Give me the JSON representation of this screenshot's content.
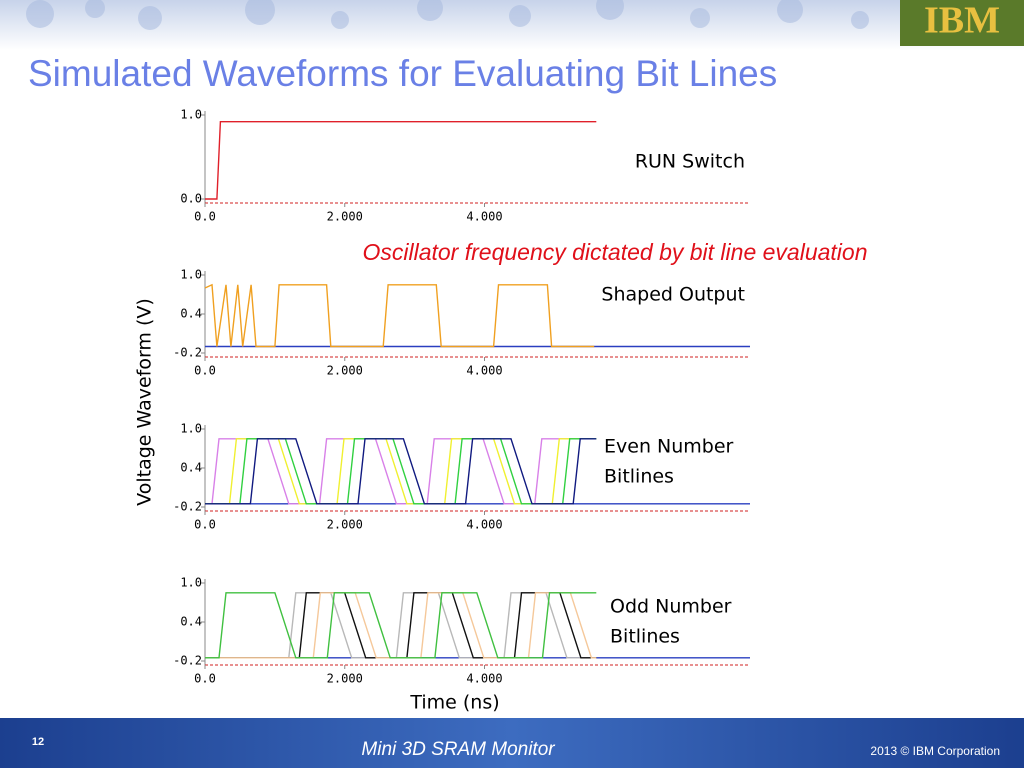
{
  "header": {
    "title": "Simulated Waveforms for Evaluating Bit Lines",
    "logo": "IBM"
  },
  "annotation": "Oscillator frequency dictated by bit line evaluation",
  "y_label": "Voltage Waveform (V)",
  "x_label": "Time (ns)",
  "chart_data": [
    {
      "type": "line",
      "annotation": [
        "RUN Switch"
      ],
      "xlim": [
        0,
        7.8
      ],
      "xticks": [
        {
          "value": 0,
          "label": "0.0"
        },
        {
          "value": 2,
          "label": "2.000"
        },
        {
          "value": 4,
          "label": "4.000"
        }
      ],
      "ylim": [
        0,
        1
      ],
      "yticks": [
        {
          "value": 0,
          "label": "0.0"
        },
        {
          "value": 1,
          "label": "1.0"
        }
      ],
      "series": [
        {
          "color": "#e0202a",
          "x": [
            0,
            0.17,
            0.22,
            5.6
          ],
          "values": [
            0,
            0,
            0.92,
            0.92
          ]
        }
      ]
    },
    {
      "type": "line",
      "annotation": [
        "Shaped Output"
      ],
      "xlim": [
        0,
        7.8
      ],
      "xticks": [
        {
          "value": 0,
          "label": "0.0"
        },
        {
          "value": 2,
          "label": "2.000"
        },
        {
          "value": 4,
          "label": "4.000"
        }
      ],
      "ylim": [
        -0.2,
        1
      ],
      "yticks": [
        -0.2,
        0.4,
        {
          "value": 1,
          "label": "1.0"
        }
      ],
      "series": [
        {
          "color": "#2a3fc0",
          "x": [
            0,
            7.8
          ],
          "values": [
            -0.1,
            -0.1
          ]
        },
        {
          "color": "#f0a020",
          "x": [
            0,
            0.1,
            0.17,
            0.3,
            0.37,
            0.47,
            0.54,
            0.66,
            0.73,
            1.0,
            1.06,
            1.74,
            1.8,
            2.55,
            2.62,
            3.31,
            3.38,
            4.13,
            4.2,
            4.9,
            4.96,
            5.57
          ],
          "values": [
            0.8,
            0.85,
            -0.1,
            0.85,
            -0.1,
            0.85,
            -0.1,
            0.85,
            -0.1,
            -0.1,
            0.85,
            0.85,
            -0.1,
            -0.1,
            0.85,
            0.85,
            -0.1,
            -0.1,
            0.85,
            0.85,
            -0.1,
            -0.1
          ]
        }
      ]
    },
    {
      "type": "line",
      "annotation": [
        "Even Number",
        "Bitlines"
      ],
      "xlim": [
        0,
        7.8
      ],
      "xticks": [
        {
          "value": 0,
          "label": "0.0"
        },
        {
          "value": 2,
          "label": "2.000"
        },
        {
          "value": 4,
          "label": "4.000"
        }
      ],
      "ylim": [
        -0.2,
        1
      ],
      "yticks": [
        -0.2,
        0.4,
        {
          "value": 1,
          "label": "1.0"
        }
      ],
      "series": [
        {
          "color": "#2a3fc0",
          "x": [
            0,
            7.8
          ],
          "values": [
            -0.15,
            -0.15
          ]
        },
        {
          "color": "#d880e8",
          "x": [
            0,
            0.1,
            0.2,
            0.9,
            1.2,
            1.64,
            1.74,
            2.44,
            2.74,
            3.18,
            3.28,
            3.98,
            4.28,
            4.72,
            4.82,
            5.52
          ],
          "values": [
            -0.15,
            -0.15,
            0.85,
            0.85,
            -0.15,
            -0.15,
            0.85,
            0.85,
            -0.15,
            -0.15,
            0.85,
            0.85,
            -0.15,
            -0.15,
            0.85,
            0.85
          ]
        },
        {
          "color": "#f0f030",
          "x": [
            0,
            0.35,
            0.45,
            1.05,
            1.35,
            1.89,
            1.99,
            2.59,
            2.89,
            3.43,
            3.53,
            4.13,
            4.43,
            4.97,
            5.07,
            5.6
          ],
          "values": [
            -0.15,
            -0.15,
            0.85,
            0.85,
            -0.15,
            -0.15,
            0.85,
            0.85,
            -0.15,
            -0.15,
            0.85,
            0.85,
            -0.15,
            -0.15,
            0.85,
            0.85
          ]
        },
        {
          "color": "#30d040",
          "x": [
            0,
            0.5,
            0.6,
            1.15,
            1.45,
            2.04,
            2.14,
            2.69,
            2.99,
            3.58,
            3.68,
            4.23,
            4.53,
            5.12,
            5.22,
            5.6
          ],
          "values": [
            -0.15,
            -0.15,
            0.85,
            0.85,
            -0.15,
            -0.15,
            0.85,
            0.85,
            -0.15,
            -0.15,
            0.85,
            0.85,
            -0.15,
            -0.15,
            0.85,
            0.85
          ]
        },
        {
          "color": "#101a80",
          "x": [
            0,
            0.65,
            0.75,
            1.3,
            1.6,
            2.19,
            2.29,
            2.84,
            3.14,
            3.73,
            3.83,
            4.38,
            4.68,
            5.27,
            5.37,
            5.6
          ],
          "values": [
            -0.15,
            -0.15,
            0.85,
            0.85,
            -0.15,
            -0.15,
            0.85,
            0.85,
            -0.15,
            -0.15,
            0.85,
            0.85,
            -0.15,
            -0.15,
            0.85,
            0.85
          ]
        }
      ]
    },
    {
      "type": "line",
      "annotation": [
        "Odd Number",
        "Bitlines"
      ],
      "xlim": [
        0,
        7.8
      ],
      "xticks": [
        {
          "value": 0,
          "label": "0.0"
        },
        {
          "value": 2,
          "label": "2.000"
        },
        {
          "value": 4,
          "label": "4.000"
        }
      ],
      "ylim": [
        -0.2,
        1
      ],
      "yticks": [
        -0.2,
        0.4,
        {
          "value": 1,
          "label": "1.0"
        }
      ],
      "series": [
        {
          "color": "#2a3fc0",
          "x": [
            0,
            7.8
          ],
          "values": [
            -0.15,
            -0.15
          ]
        },
        {
          "color": "#b8b8b8",
          "x": [
            0,
            1.2,
            1.3,
            1.8,
            2.1,
            2.74,
            2.84,
            3.34,
            3.64,
            4.28,
            4.38,
            4.88,
            5.18,
            5.6
          ],
          "values": [
            -0.15,
            -0.15,
            0.85,
            0.85,
            -0.15,
            -0.15,
            0.85,
            0.85,
            -0.15,
            -0.15,
            0.85,
            0.85,
            -0.15,
            -0.15
          ]
        },
        {
          "color": "#111111",
          "x": [
            0,
            1.35,
            1.45,
            2.0,
            2.3,
            2.89,
            2.99,
            3.54,
            3.84,
            4.43,
            4.53,
            5.08,
            5.38,
            5.6
          ],
          "values": [
            -0.15,
            -0.15,
            0.85,
            0.85,
            -0.15,
            -0.15,
            0.85,
            0.85,
            -0.15,
            -0.15,
            0.85,
            0.85,
            -0.15,
            -0.15
          ]
        },
        {
          "color": "#f5c89a",
          "x": [
            0,
            1.55,
            1.65,
            2.15,
            2.45,
            3.09,
            3.19,
            3.69,
            3.99,
            4.63,
            4.73,
            5.23,
            5.53,
            5.6
          ],
          "values": [
            -0.15,
            -0.15,
            0.85,
            0.85,
            -0.15,
            -0.15,
            0.85,
            0.85,
            -0.15,
            -0.15,
            0.85,
            0.85,
            -0.15,
            -0.15
          ]
        },
        {
          "color": "#40c040",
          "x": [
            0,
            0.2,
            0.3,
            1.0,
            1.3,
            1.75,
            1.85,
            2.35,
            2.65,
            3.29,
            3.39,
            3.89,
            4.19,
            4.83,
            4.93,
            5.6
          ],
          "values": [
            -0.15,
            -0.15,
            0.85,
            0.85,
            -0.15,
            -0.15,
            0.85,
            0.85,
            -0.15,
            -0.15,
            0.85,
            0.85,
            -0.15,
            -0.15,
            0.85,
            0.85
          ]
        }
      ]
    }
  ],
  "footer": {
    "page": "12",
    "center": "Mini 3D SRAM Monitor",
    "right": "2013 © IBM Corporation"
  }
}
